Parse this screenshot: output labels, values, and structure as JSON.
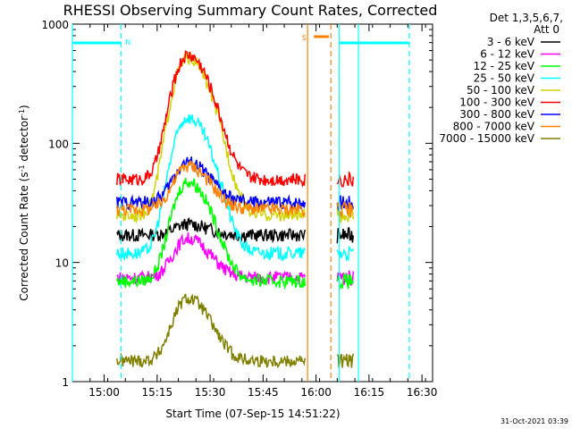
{
  "chart_data": {
    "type": "line",
    "title": "RHESSI Observing Summary Count Rates, Corrected",
    "xlabel": "Start Time (07-Sep-15 14:51:22)",
    "ylabel": "Corrected Count Rate (s⁻¹ detector⁻¹)",
    "ylabel_main": "Corrected Count Rate (s",
    "ylabel_sup1": "-1",
    "ylabel_mid": " detector",
    "ylabel_sup2": "-1",
    "ylabel_end": ")",
    "yscale": "log",
    "ylim": [
      1,
      1000
    ],
    "xlim_minutes": [
      14.85,
      16.55
    ],
    "x_ticks": [
      "15:00",
      "15:15",
      "15:30",
      "15:45",
      "16:00",
      "16:15",
      "16:30"
    ],
    "y_ticks": [
      "1",
      "10",
      "100",
      "1000"
    ],
    "legend_header": [
      "Det 1,3,5,6,7,",
      "Att 0"
    ],
    "legend_placement": "right",
    "footer_date": "31-Oct-2021 03:39",
    "annotations": [
      {
        "label": "N",
        "color": "#00ffff"
      },
      {
        "label": "S",
        "color": "#ff8000"
      }
    ],
    "series": [
      {
        "name": "3 - 6 keV",
        "color": "#000000",
        "peak": 21,
        "base": 17
      },
      {
        "name": "6 - 12 keV",
        "color": "#ff00ff",
        "peak": 16,
        "base": 7.5
      },
      {
        "name": "12 - 25 keV",
        "color": "#00ff00",
        "peak": 48,
        "base": 7
      },
      {
        "name": "25 - 50 keV",
        "color": "#00ffff",
        "peak": 165,
        "base": 12
      },
      {
        "name": "50 - 100 keV",
        "color": "#d2d200",
        "peak": 520,
        "base": 25
      },
      {
        "name": "100 - 300 keV",
        "color": "#ff0000",
        "peak": 550,
        "base": 50
      },
      {
        "name": "300 - 800 keV",
        "color": "#0000ff",
        "peak": 70,
        "base": 32
      },
      {
        "name": "800 - 7000 keV",
        "color": "#ff8000",
        "peak": 65,
        "base": 28
      },
      {
        "name": "7000 - 15000 keV",
        "color": "#808000",
        "peak": 5,
        "base": 1.5
      }
    ]
  }
}
